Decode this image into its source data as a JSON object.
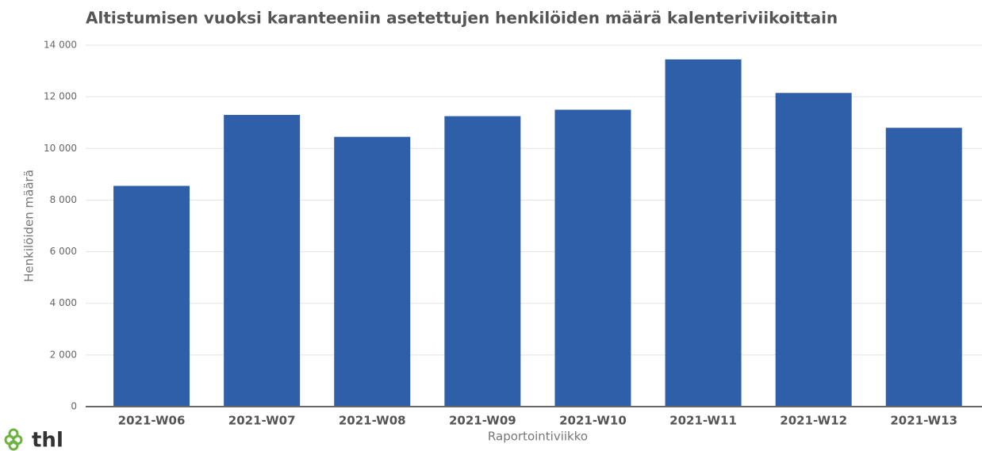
{
  "chart_data": {
    "type": "bar",
    "title": "Altistumisen vuoksi karanteeniin asetettujen henkilöiden määrä kalenteriviikoittain",
    "x_label": "Raportointiviikko",
    "y_label": "Henkilöiden määrä",
    "categories": [
      "2021-W06",
      "2021-W07",
      "2021-W08",
      "2021-W09",
      "2021-W10",
      "2021-W11",
      "2021-W12",
      "2021-W13"
    ],
    "values": [
      8550,
      11300,
      10450,
      11250,
      11500,
      13450,
      12150,
      10800
    ],
    "color": "#2e5fa8",
    "ylim": [
      0,
      14000
    ],
    "yticks": [
      0,
      {
        "value": 2000,
        "label": "2 000"
      },
      {
        "value": 4000,
        "label": "4 000"
      },
      {
        "value": 6000,
        "label": "6 000"
      },
      {
        "value": 8000,
        "label": "8 000"
      },
      {
        "value": 10000,
        "label": "10 000"
      },
      {
        "value": 12000,
        "label": "12 000"
      },
      {
        "value": 14000,
        "label": "14 000"
      }
    ],
    "grid": true
  },
  "logo": "thl"
}
